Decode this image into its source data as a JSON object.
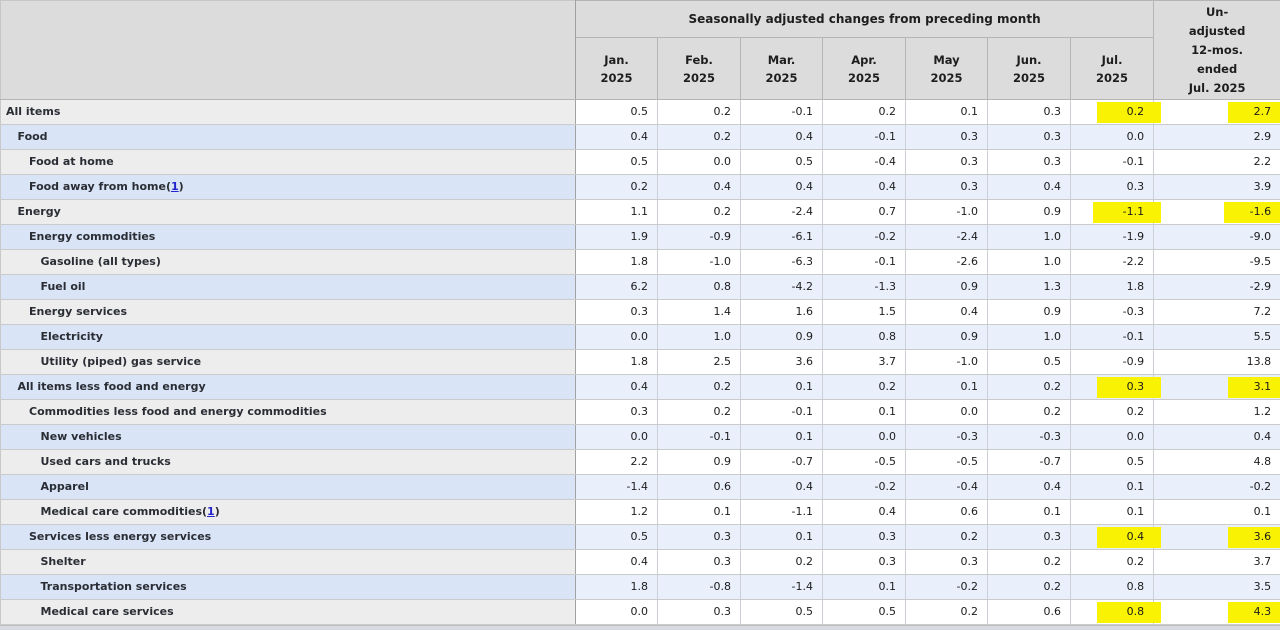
{
  "chart_data": {
    "type": "table",
    "group_header": "Seasonally adjusted changes from preceding month",
    "columns": [
      {
        "month": "Jan.",
        "year": "2025"
      },
      {
        "month": "Feb.",
        "year": "2025"
      },
      {
        "month": "Mar.",
        "year": "2025"
      },
      {
        "month": "Apr.",
        "year": "2025"
      },
      {
        "month": "May",
        "year": "2025"
      },
      {
        "month": "Jun.",
        "year": "2025"
      },
      {
        "month": "Jul.",
        "year": "2025"
      }
    ],
    "last_column_header_lines": [
      "Un-",
      "adjusted",
      "12-mos.",
      "ended",
      "Jul. 2025"
    ],
    "rows": [
      {
        "label": "All items",
        "indent": 0,
        "footnote": null,
        "values": [
          "0.5",
          "0.2",
          "-0.1",
          "0.2",
          "0.1",
          "0.3",
          "0.2",
          "2.7"
        ],
        "highlight": [
          6,
          7
        ]
      },
      {
        "label": "Food",
        "indent": 1,
        "footnote": null,
        "values": [
          "0.4",
          "0.2",
          "0.4",
          "-0.1",
          "0.3",
          "0.3",
          "0.0",
          "2.9"
        ],
        "highlight": []
      },
      {
        "label": "Food at home",
        "indent": 2,
        "footnote": null,
        "values": [
          "0.5",
          "0.0",
          "0.5",
          "-0.4",
          "0.3",
          "0.3",
          "-0.1",
          "2.2"
        ],
        "highlight": []
      },
      {
        "label": "Food away from home",
        "indent": 2,
        "footnote": "1",
        "values": [
          "0.2",
          "0.4",
          "0.4",
          "0.4",
          "0.3",
          "0.4",
          "0.3",
          "3.9"
        ],
        "highlight": []
      },
      {
        "label": "Energy",
        "indent": 1,
        "footnote": null,
        "values": [
          "1.1",
          "0.2",
          "-2.4",
          "0.7",
          "-1.0",
          "0.9",
          "-1.1",
          "-1.6"
        ],
        "highlight": [
          6,
          7
        ]
      },
      {
        "label": "Energy commodities",
        "indent": 2,
        "footnote": null,
        "values": [
          "1.9",
          "-0.9",
          "-6.1",
          "-0.2",
          "-2.4",
          "1.0",
          "-1.9",
          "-9.0"
        ],
        "highlight": []
      },
      {
        "label": "Gasoline (all types)",
        "indent": 3,
        "footnote": null,
        "values": [
          "1.8",
          "-1.0",
          "-6.3",
          "-0.1",
          "-2.6",
          "1.0",
          "-2.2",
          "-9.5"
        ],
        "highlight": []
      },
      {
        "label": "Fuel oil",
        "indent": 3,
        "footnote": null,
        "values": [
          "6.2",
          "0.8",
          "-4.2",
          "-1.3",
          "0.9",
          "1.3",
          "1.8",
          "-2.9"
        ],
        "highlight": []
      },
      {
        "label": "Energy services",
        "indent": 2,
        "footnote": null,
        "values": [
          "0.3",
          "1.4",
          "1.6",
          "1.5",
          "0.4",
          "0.9",
          "-0.3",
          "7.2"
        ],
        "highlight": []
      },
      {
        "label": "Electricity",
        "indent": 3,
        "footnote": null,
        "values": [
          "0.0",
          "1.0",
          "0.9",
          "0.8",
          "0.9",
          "1.0",
          "-0.1",
          "5.5"
        ],
        "highlight": []
      },
      {
        "label": "Utility (piped) gas service",
        "indent": 3,
        "footnote": null,
        "values": [
          "1.8",
          "2.5",
          "3.6",
          "3.7",
          "-1.0",
          "0.5",
          "-0.9",
          "13.8"
        ],
        "highlight": []
      },
      {
        "label": "All items less food and energy",
        "indent": 1,
        "footnote": null,
        "values": [
          "0.4",
          "0.2",
          "0.1",
          "0.2",
          "0.1",
          "0.2",
          "0.3",
          "3.1"
        ],
        "highlight": [
          6,
          7
        ]
      },
      {
        "label": "Commodities less food and energy commodities",
        "indent": 2,
        "footnote": null,
        "values": [
          "0.3",
          "0.2",
          "-0.1",
          "0.1",
          "0.0",
          "0.2",
          "0.2",
          "1.2"
        ],
        "highlight": []
      },
      {
        "label": "New vehicles",
        "indent": 3,
        "footnote": null,
        "values": [
          "0.0",
          "-0.1",
          "0.1",
          "0.0",
          "-0.3",
          "-0.3",
          "0.0",
          "0.4"
        ],
        "highlight": []
      },
      {
        "label": "Used cars and trucks",
        "indent": 3,
        "footnote": null,
        "values": [
          "2.2",
          "0.9",
          "-0.7",
          "-0.5",
          "-0.5",
          "-0.7",
          "0.5",
          "4.8"
        ],
        "highlight": []
      },
      {
        "label": "Apparel",
        "indent": 3,
        "footnote": null,
        "values": [
          "-1.4",
          "0.6",
          "0.4",
          "-0.2",
          "-0.4",
          "0.4",
          "0.1",
          "-0.2"
        ],
        "highlight": []
      },
      {
        "label": "Medical care commodities",
        "indent": 3,
        "footnote": "1",
        "values": [
          "1.2",
          "0.1",
          "-1.1",
          "0.4",
          "0.6",
          "0.1",
          "0.1",
          "0.1"
        ],
        "highlight": []
      },
      {
        "label": "Services less energy services",
        "indent": 2,
        "footnote": null,
        "values": [
          "0.5",
          "0.3",
          "0.1",
          "0.3",
          "0.2",
          "0.3",
          "0.4",
          "3.6"
        ],
        "highlight": [
          6,
          7
        ]
      },
      {
        "label": "Shelter",
        "indent": 3,
        "footnote": null,
        "values": [
          "0.4",
          "0.3",
          "0.2",
          "0.3",
          "0.3",
          "0.2",
          "0.2",
          "3.7"
        ],
        "highlight": []
      },
      {
        "label": "Transportation services",
        "indent": 3,
        "footnote": null,
        "values": [
          "1.8",
          "-0.8",
          "-1.4",
          "0.1",
          "-0.2",
          "0.2",
          "0.8",
          "3.5"
        ],
        "highlight": []
      },
      {
        "label": "Medical care services",
        "indent": 3,
        "footnote": null,
        "values": [
          "0.0",
          "0.3",
          "0.5",
          "0.5",
          "0.2",
          "0.6",
          "0.8",
          "4.3"
        ],
        "highlight": [
          6,
          7
        ]
      }
    ]
  },
  "colors": {
    "highlight_yellow": "#f9f303",
    "row_blue_label": "#d9e4f7",
    "row_blue_data": "#e9effb",
    "row_gray_label": "#ededed",
    "header_bg": "#dcdcdc",
    "footnote_link": "#2323cc"
  }
}
